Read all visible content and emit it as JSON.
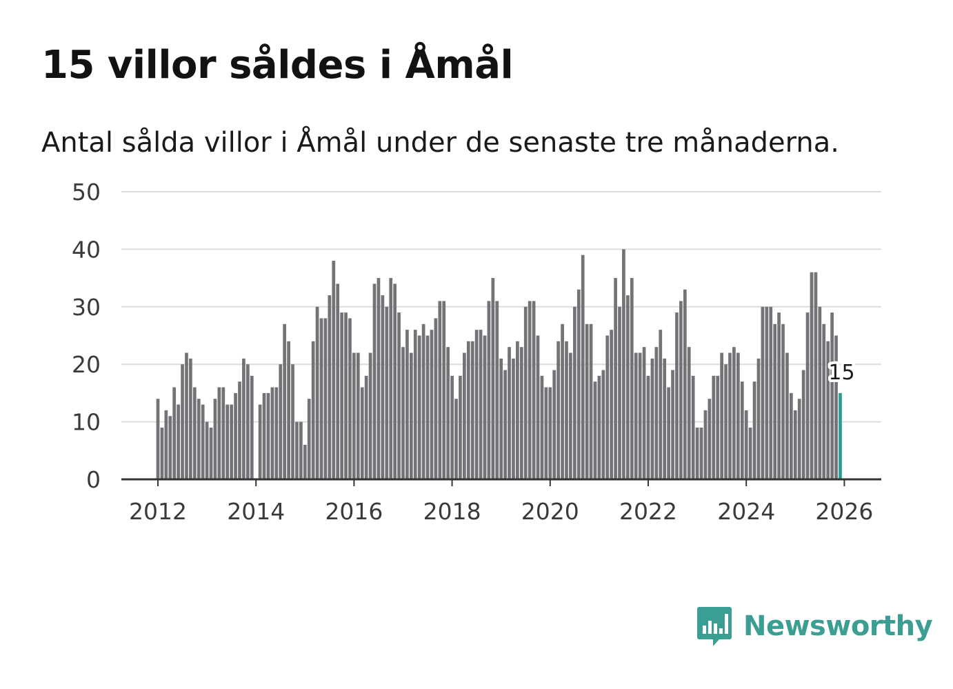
{
  "header": {
    "title": "15 villor såldes i Åmål",
    "subtitle": "Antal sålda villor i Åmål under de senaste tre månaderna."
  },
  "brand": {
    "name": "Newsworthy",
    "icon": "bar-chart-speech-bubble-icon"
  },
  "colors": {
    "bar": "#737276",
    "highlight": "#2a9d91",
    "grid": "#dcdcdc",
    "axis": "#333333",
    "brand": "#3a9e93"
  },
  "chart_data": {
    "type": "bar",
    "title": "15 villor såldes i Åmål",
    "subtitle": "Antal sålda villor i Åmål under de senaste tre månaderna.",
    "xlabel": "",
    "ylabel": "",
    "ylim": [
      0,
      50
    ],
    "yticks": [
      "0",
      "10",
      "20",
      "30",
      "40",
      "50"
    ],
    "xticks": [
      "2012",
      "2014",
      "2016",
      "2018",
      "2020",
      "2022",
      "2024",
      "2026"
    ],
    "xlim": [
      2011.25,
      2026.75
    ],
    "grid": true,
    "series": [
      {
        "name": "Sålda villor",
        "start": "2012-01",
        "step_months": 1,
        "values": [
          14,
          9,
          12,
          11,
          16,
          13,
          20,
          22,
          21,
          16,
          14,
          13,
          10,
          9,
          14,
          16,
          16,
          13,
          13,
          15,
          17,
          21,
          20,
          18,
          null,
          13,
          15,
          15,
          16,
          16,
          20,
          27,
          24,
          20,
          10,
          10,
          6,
          14,
          24,
          30,
          28,
          28,
          32,
          38,
          34,
          29,
          29,
          28,
          22,
          22,
          16,
          18,
          22,
          34,
          35,
          32,
          30,
          35,
          34,
          29,
          23,
          26,
          22,
          26,
          25,
          27,
          25,
          26,
          28,
          31,
          31,
          23,
          18,
          14,
          18,
          22,
          24,
          24,
          26,
          26,
          25,
          31,
          35,
          31,
          21,
          19,
          23,
          21,
          24,
          23,
          30,
          31,
          31,
          25,
          18,
          16,
          16,
          19,
          24,
          27,
          24,
          22,
          30,
          33,
          39,
          27,
          27,
          17,
          18,
          19,
          25,
          26,
          35,
          30,
          40,
          32,
          35,
          22,
          22,
          23,
          18,
          21,
          23,
          26,
          21,
          16,
          19,
          29,
          31,
          33,
          23,
          18,
          9,
          9,
          12,
          14,
          18,
          18,
          22,
          20,
          22,
          23,
          22,
          17,
          12,
          9,
          17,
          21,
          30,
          30,
          30,
          27,
          29,
          27,
          22,
          15,
          12,
          14,
          19,
          29,
          36,
          36,
          30,
          27,
          24,
          29,
          25,
          15
        ]
      }
    ],
    "highlight_label": "15"
  }
}
